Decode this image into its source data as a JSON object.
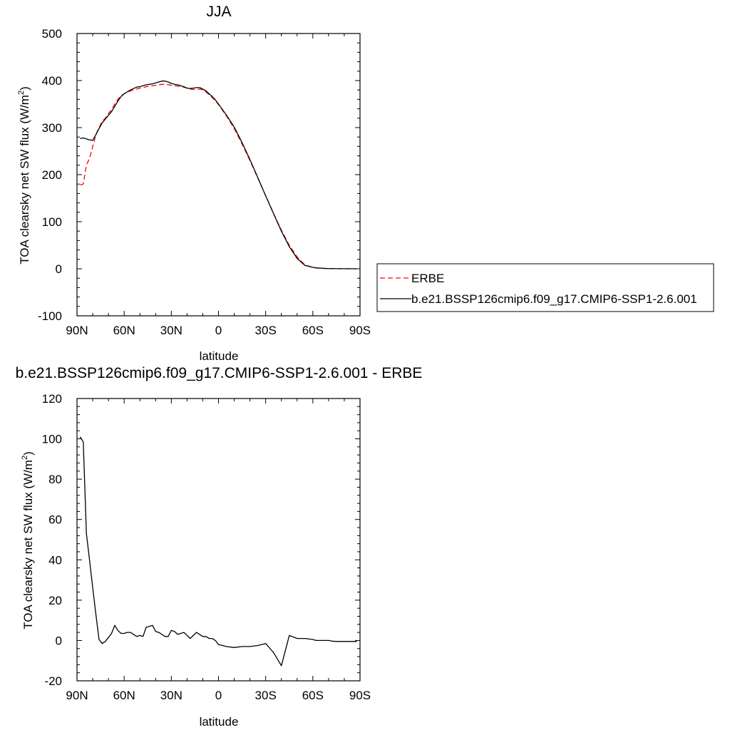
{
  "chart_data": [
    {
      "type": "line",
      "title": "JJA",
      "xlabel": "latitude",
      "ylabel": "TOA clearsky net SW flux (W/m",
      "ylabel_sup": "2",
      "ylabel_close": ")",
      "xlim": [
        90,
        -90
      ],
      "ylim": [
        -100,
        500
      ],
      "xticks": [
        {
          "value": 90,
          "label": "90N"
        },
        {
          "value": 60,
          "label": "60N"
        },
        {
          "value": 30,
          "label": "30N"
        },
        {
          "value": 0,
          "label": "0"
        },
        {
          "value": -30,
          "label": "30S"
        },
        {
          "value": -60,
          "label": "60S"
        },
        {
          "value": -90,
          "label": "90S"
        }
      ],
      "yticks": [
        -100,
        0,
        100,
        200,
        300,
        400,
        500
      ],
      "legend_position": "right",
      "series": [
        {
          "name": "ERBE",
          "color": "#ff0000",
          "dash": "dashed",
          "x": [
            88,
            86,
            84,
            82,
            80,
            78,
            76,
            74,
            72,
            70,
            68,
            66,
            64,
            62,
            60,
            58,
            56,
            54,
            52,
            50,
            48,
            46,
            44,
            42,
            40,
            38,
            36,
            34,
            32,
            30,
            28,
            26,
            24,
            22,
            20,
            18,
            16,
            14,
            12,
            10,
            8,
            6,
            4,
            2,
            0,
            -5,
            -10,
            -15,
            -20,
            -25,
            -30,
            -35,
            -40,
            -45,
            -50,
            -55,
            -60,
            -62,
            -64,
            -66,
            -68,
            -70,
            -72,
            -75,
            -80,
            -85,
            -88
          ],
          "y": [
            178,
            180,
            220,
            235,
            260,
            285,
            300,
            313,
            320,
            330,
            338,
            350,
            360,
            368,
            372,
            375,
            378,
            380,
            382,
            384,
            385,
            387,
            388,
            389,
            390,
            391,
            392,
            392,
            391,
            390,
            389,
            388,
            387,
            386,
            384,
            382,
            381,
            381,
            382,
            380,
            376,
            370,
            364,
            357,
            349,
            325,
            298,
            265,
            230,
            193,
            155,
            118,
            82,
            50,
            25,
            8,
            3,
            2,
            1,
            1,
            0.5,
            0.3,
            0.2,
            0.1,
            0,
            0,
            0
          ]
        },
        {
          "name": "b.e21.BSSP126cmip6.f09_g17.CMIP6-SSP1-2.6.001",
          "color": "#000000",
          "dash": "solid",
          "x": [
            88,
            86,
            84,
            82,
            80,
            78,
            76,
            74,
            72,
            70,
            68,
            66,
            64,
            62,
            60,
            58,
            56,
            54,
            52,
            50,
            48,
            46,
            44,
            42,
            40,
            38,
            36,
            34,
            32,
            30,
            28,
            26,
            24,
            22,
            20,
            18,
            16,
            14,
            12,
            10,
            8,
            6,
            4,
            2,
            0,
            -5,
            -10,
            -15,
            -20,
            -25,
            -30,
            -35,
            -40,
            -45,
            -50,
            -55,
            -60,
            -62,
            -64,
            -66,
            -68,
            -70,
            -72,
            -75,
            -80,
            -85,
            -88
          ],
          "y": [
            277,
            278,
            276,
            274,
            273,
            285,
            298,
            310,
            318,
            326,
            334,
            345,
            356,
            366,
            372,
            376,
            380,
            383,
            386,
            387,
            389,
            391,
            392,
            393,
            395,
            397,
            399,
            399,
            397,
            394,
            392,
            391,
            389,
            387,
            384,
            383,
            384,
            385,
            385,
            382,
            378,
            372,
            366,
            359,
            350,
            327,
            301,
            268,
            232,
            194,
            155,
            117,
            80,
            47,
            22,
            7,
            3,
            2,
            1.5,
            1,
            0.7,
            0.5,
            0.3,
            0.2,
            0.1,
            0,
            0
          ]
        }
      ]
    },
    {
      "type": "line",
      "title": "b.e21.BSSP126cmip6.f09_g17.CMIP6-SSP1-2.6.001 - ERBE",
      "xlabel": "latitude",
      "ylabel": "TOA clearsky net SW flux (W/m",
      "ylabel_sup": "2",
      "ylabel_close": ")",
      "xlim": [
        90,
        -90
      ],
      "ylim": [
        -20,
        120
      ],
      "xticks": [
        {
          "value": 90,
          "label": "90N"
        },
        {
          "value": 60,
          "label": "60N"
        },
        {
          "value": 30,
          "label": "30N"
        },
        {
          "value": 0,
          "label": "0"
        },
        {
          "value": -30,
          "label": "30S"
        },
        {
          "value": -60,
          "label": "60S"
        },
        {
          "value": -90,
          "label": "90S"
        }
      ],
      "yticks": [
        -20,
        0,
        20,
        40,
        60,
        80,
        100,
        120
      ],
      "series": [
        {
          "name": "",
          "color": "#000000",
          "dash": "solid",
          "x": [
            88,
            86,
            84,
            82,
            80,
            78,
            76,
            74,
            72,
            70,
            68,
            66,
            64,
            62,
            60,
            58,
            56,
            54,
            52,
            50,
            48,
            46,
            44,
            42,
            40,
            38,
            36,
            34,
            32,
            30,
            28,
            26,
            24,
            22,
            20,
            18,
            16,
            14,
            12,
            10,
            8,
            6,
            4,
            2,
            0,
            -5,
            -10,
            -15,
            -20,
            -25,
            -30,
            -35,
            -40,
            -45,
            -50,
            -55,
            -60,
            -62,
            -64,
            -66,
            -67,
            -68,
            -70,
            -72,
            -75,
            -80,
            -85,
            -88
          ],
          "y": [
            101,
            98.5,
            53,
            40,
            26,
            13,
            0.5,
            -1.5,
            -0.5,
            1.5,
            3.5,
            7.5,
            5,
            3.5,
            3.5,
            4,
            4,
            3,
            2,
            2.5,
            2,
            6.5,
            7,
            7.5,
            4.5,
            4,
            3,
            2,
            2,
            5,
            4.5,
            3,
            3.5,
            4,
            2.5,
            1,
            2.5,
            4,
            3,
            2,
            2,
            1,
            1,
            0,
            -2,
            -3,
            -3.5,
            -3,
            -3,
            -2.5,
            -1.5,
            -6,
            -12.5,
            2.5,
            1,
            1,
            0.5,
            0,
            0,
            0,
            0,
            0,
            0,
            -0.3,
            -0.5,
            -0.5,
            -0.5,
            -0.5
          ]
        }
      ]
    }
  ]
}
